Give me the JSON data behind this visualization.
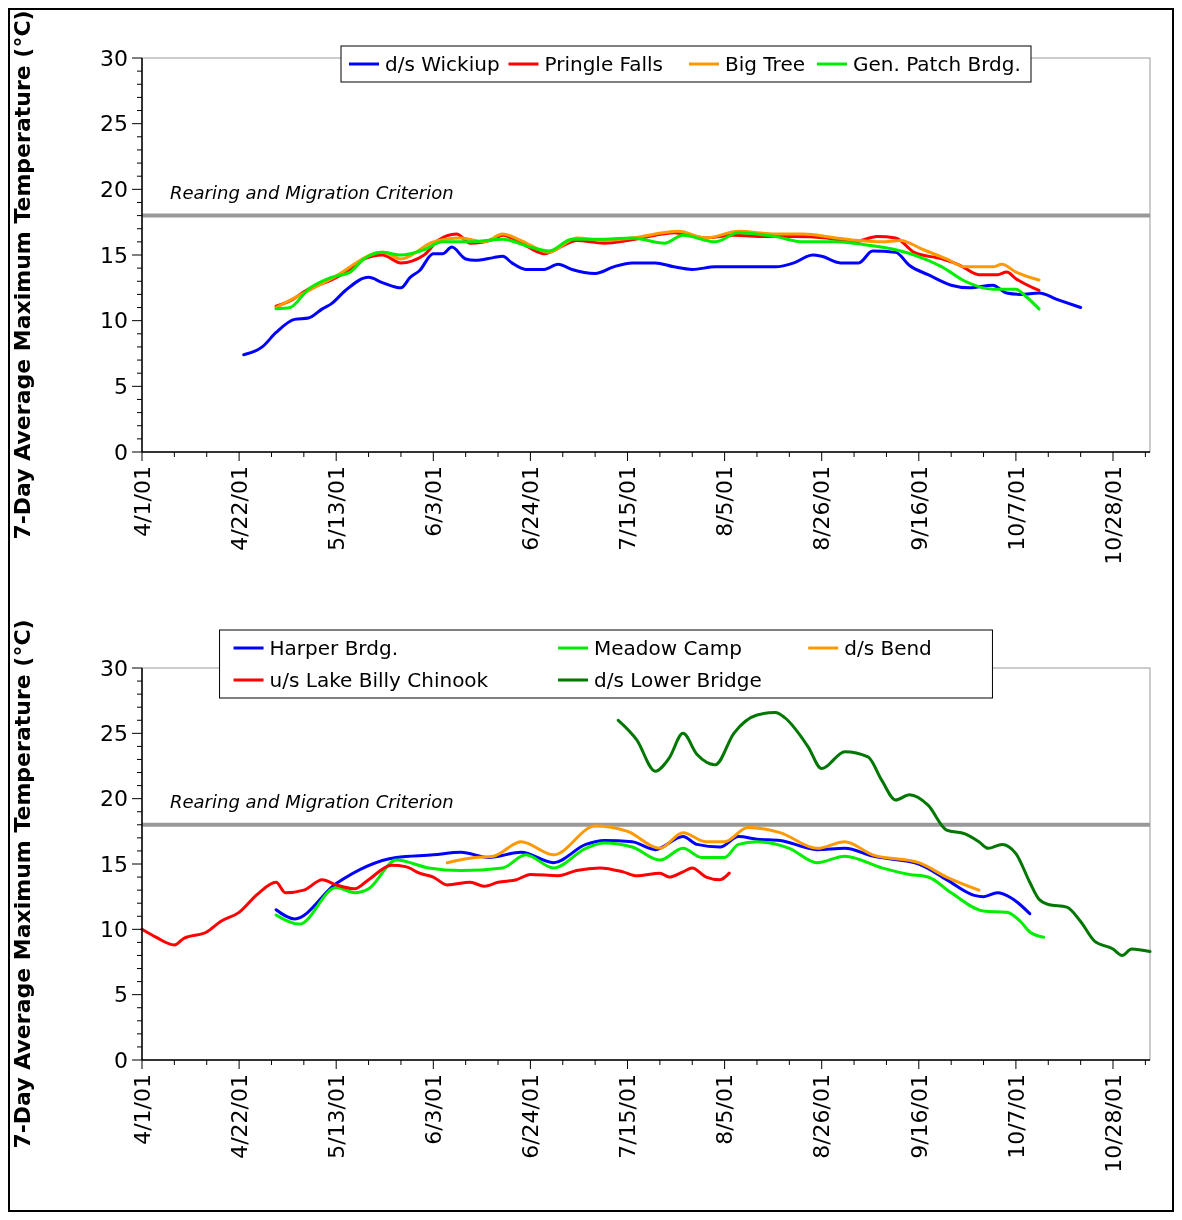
{
  "chart_data": [
    {
      "type": "line",
      "ylabel": "7-Day Average Maximum Temperature (°C)",
      "xlim": [
        "--04-01",
        "--11-05"
      ],
      "ylim": [
        0,
        30
      ],
      "xticks": [
        {
          "value": "--04-01",
          "label": "4/1/01"
        },
        {
          "value": "--04-08",
          "label": null
        },
        {
          "value": "--04-15",
          "label": null
        },
        {
          "value": "--04-22",
          "label": "4/22/01"
        },
        {
          "value": "--04-29",
          "label": null
        },
        {
          "value": "--05-06",
          "label": null
        },
        {
          "value": "--05-13",
          "label": "5/13/01"
        },
        {
          "value": "--05-20",
          "label": null
        },
        {
          "value": "--05-27",
          "label": null
        },
        {
          "value": "--06-03",
          "label": "6/3/01"
        },
        {
          "value": "--06-10",
          "label": null
        },
        {
          "value": "--06-17",
          "label": null
        },
        {
          "value": "--06-24",
          "label": "6/24/01"
        },
        {
          "value": "--07-01",
          "label": null
        },
        {
          "value": "--07-08",
          "label": null
        },
        {
          "value": "--07-15",
          "label": "7/15/01"
        },
        {
          "value": "--07-22",
          "label": null
        },
        {
          "value": "--07-29",
          "label": null
        },
        {
          "value": "--08-05",
          "label": "8/5/01"
        },
        {
          "value": "--08-12",
          "label": null
        },
        {
          "value": "--08-19",
          "label": null
        },
        {
          "value": "--08-26",
          "label": "8/26/01"
        },
        {
          "value": "--09-02",
          "label": null
        },
        {
          "value": "--09-09",
          "label": null
        },
        {
          "value": "--09-16",
          "label": "9/16/01"
        },
        {
          "value": "--09-23",
          "label": null
        },
        {
          "value": "--09-30",
          "label": null
        },
        {
          "value": "--10-07",
          "label": "10/7/01"
        },
        {
          "value": "--10-14",
          "label": null
        },
        {
          "value": "--10-21",
          "label": null
        },
        {
          "value": "--10-28",
          "label": "10/28/01"
        },
        {
          "value": "--11-04",
          "label": null
        }
      ],
      "yticks": [
        0,
        {
          "value": 1,
          "label": null
        },
        {
          "value": 2,
          "label": null
        },
        {
          "value": 3,
          "label": null
        },
        {
          "value": 4,
          "label": null
        },
        5,
        {
          "value": 6,
          "label": null
        },
        {
          "value": 7,
          "label": null
        },
        {
          "value": 8,
          "label": null
        },
        {
          "value": 9,
          "label": null
        },
        10,
        {
          "value": 11,
          "label": null
        },
        {
          "value": 12,
          "label": null
        },
        {
          "value": 13,
          "label": null
        },
        {
          "value": 14,
          "label": null
        },
        15,
        {
          "value": 16,
          "label": null
        },
        {
          "value": 17,
          "label": null
        },
        {
          "value": 18,
          "label": null
        },
        {
          "value": 19,
          "label": null
        },
        20,
        {
          "value": 21,
          "label": null
        },
        {
          "value": 22,
          "label": null
        },
        {
          "value": 23,
          "label": null
        },
        {
          "value": 24,
          "label": null
        },
        25,
        {
          "value": 26,
          "label": null
        },
        {
          "value": 27,
          "label": null
        },
        {
          "value": 28,
          "label": null
        },
        {
          "value": 29,
          "label": null
        },
        30
      ],
      "grid": false,
      "legend": "top",
      "ref_lines": [
        {
          "axis": "y",
          "value": 18,
          "label": "Rearing and Migration Criterion",
          "color": "#999999"
        }
      ],
      "series": [
        {
          "name": "d/s Wickiup",
          "color": "#0000ff",
          "x": [
            "--04-23",
            "--04-27",
            "--04-30",
            "--05-04",
            "--05-07",
            "--05-10",
            "--05-12",
            "--05-15",
            "--05-20",
            "--05-23",
            "--05-27",
            "--05-29",
            "--05-31",
            "--06-03",
            "--06-05",
            "--06-07",
            "--06-10",
            "--06-12",
            "--06-16",
            "--06-18",
            "--06-20",
            "--06-23",
            "--06-27",
            "--06-30",
            "--07-03",
            "--07-08",
            "--07-12",
            "--07-16",
            "--07-21",
            "--07-25",
            "--07-29",
            "--08-03",
            "--08-08",
            "--08-16",
            "--08-20",
            "--08-24",
            "--08-26",
            "--08-30",
            "--09-03",
            "--09-06",
            "--09-11",
            "--09-14",
            "--09-18",
            "--09-23",
            "--09-27",
            "--10-02",
            "--10-05",
            "--10-08",
            "--10-12",
            "--10-16",
            "--10-21"
          ],
          "values": [
            7.4,
            8.0,
            9.1,
            10.1,
            10.2,
            10.9,
            11.3,
            12.3,
            13.3,
            12.9,
            12.5,
            13.3,
            13.8,
            15.1,
            15.1,
            15.6,
            14.7,
            14.6,
            14.8,
            14.9,
            14.4,
            13.9,
            13.9,
            14.3,
            13.9,
            13.6,
            14.1,
            14.4,
            14.4,
            14.1,
            13.9,
            14.1,
            14.1,
            14.1,
            14.4,
            15.0,
            14.9,
            14.4,
            14.4,
            15.3,
            15.2,
            14.2,
            13.5,
            12.7,
            12.5,
            12.7,
            12.1,
            12.0,
            12.1,
            11.6,
            11.0
          ]
        },
        {
          "name": "Pringle Falls",
          "color": "#ff0000",
          "x": [
            "--04-30",
            "--05-03",
            "--05-07",
            "--05-12",
            "--05-16",
            "--05-19",
            "--05-23",
            "--05-27",
            "--06-01",
            "--06-04",
            "--06-08",
            "--06-11",
            "--06-16",
            "--06-18",
            "--06-22",
            "--06-27",
            "--07-01",
            "--07-04",
            "--07-10",
            "--07-15",
            "--07-21",
            "--07-25",
            "--08-01",
            "--08-07",
            "--08-14",
            "--08-20",
            "--08-27",
            "--09-02",
            "--09-07",
            "--09-11",
            "--09-15",
            "--09-21",
            "--09-25",
            "--09-29",
            "--10-03",
            "--10-05",
            "--10-07",
            "--10-12"
          ],
          "values": [
            11.1,
            11.5,
            12.4,
            13.1,
            13.9,
            14.7,
            15.0,
            14.4,
            15.0,
            16.1,
            16.6,
            15.9,
            16.2,
            16.5,
            15.9,
            15.1,
            15.7,
            16.1,
            15.9,
            16.1,
            16.5,
            16.7,
            16.3,
            16.5,
            16.4,
            16.4,
            16.3,
            16.0,
            16.4,
            16.3,
            15.2,
            14.7,
            14.2,
            13.5,
            13.5,
            13.7,
            13.2,
            12.3
          ]
        },
        {
          "name": "Big Tree",
          "color": "#ff9900",
          "x": [
            "--04-30",
            "--05-12",
            "--05-23",
            "--05-27",
            "--06-03",
            "--06-09",
            "--06-14",
            "--06-18",
            "--06-22",
            "--06-28",
            "--07-04",
            "--07-10",
            "--07-16",
            "--07-26",
            "--08-01",
            "--08-08",
            "--08-16",
            "--08-22",
            "--08-29",
            "--09-03",
            "--09-08",
            "--09-12",
            "--09-17",
            "--09-22",
            "--09-26",
            "--10-02",
            "--10-04",
            "--10-07",
            "--10-12"
          ],
          "values": [
            11.0,
            13.2,
            15.2,
            14.7,
            16.0,
            16.3,
            16.0,
            16.6,
            16.1,
            15.2,
            16.3,
            16.1,
            16.3,
            16.8,
            16.3,
            16.8,
            16.6,
            16.6,
            16.3,
            16.1,
            16.0,
            16.1,
            15.4,
            14.7,
            14.1,
            14.1,
            14.3,
            13.7,
            13.1
          ]
        },
        {
          "name": "Gen. Patch Brdg.",
          "color": "#00ee00",
          "x": [
            "--04-30",
            "--05-03",
            "--05-07",
            "--05-12",
            "--05-16",
            "--05-19",
            "--05-23",
            "--05-27",
            "--06-01",
            "--06-05",
            "--06-11",
            "--06-18",
            "--06-24",
            "--06-28",
            "--07-03",
            "--07-10",
            "--07-16",
            "--07-23",
            "--07-27",
            "--08-03",
            "--08-08",
            "--08-16",
            "--08-22",
            "--08-29",
            "--09-04",
            "--09-11",
            "--09-15",
            "--09-21",
            "--09-26",
            "--10-02",
            "--10-07",
            "--10-09",
            "--10-12"
          ],
          "values": [
            10.9,
            11.0,
            12.4,
            13.3,
            13.7,
            14.7,
            15.2,
            15.0,
            15.4,
            16.0,
            16.0,
            16.2,
            15.6,
            15.3,
            16.2,
            16.2,
            16.3,
            15.9,
            16.5,
            16.0,
            16.7,
            16.4,
            16.0,
            16.0,
            15.8,
            15.4,
            15.0,
            14.1,
            13.0,
            12.4,
            12.4,
            11.9,
            10.9
          ]
        }
      ]
    },
    {
      "type": "line",
      "ylabel": "7-Day Average Maximum Temperature (°C)",
      "xlim": [
        "--04-01",
        "--11-05"
      ],
      "ylim": [
        0,
        30
      ],
      "xticks": [
        {
          "value": "--04-01",
          "label": "4/1/01"
        },
        {
          "value": "--04-08",
          "label": null
        },
        {
          "value": "--04-15",
          "label": null
        },
        {
          "value": "--04-22",
          "label": "4/22/01"
        },
        {
          "value": "--04-29",
          "label": null
        },
        {
          "value": "--05-06",
          "label": null
        },
        {
          "value": "--05-13",
          "label": "5/13/01"
        },
        {
          "value": "--05-20",
          "label": null
        },
        {
          "value": "--05-27",
          "label": null
        },
        {
          "value": "--06-03",
          "label": "6/3/01"
        },
        {
          "value": "--06-10",
          "label": null
        },
        {
          "value": "--06-17",
          "label": null
        },
        {
          "value": "--06-24",
          "label": "6/24/01"
        },
        {
          "value": "--07-01",
          "label": null
        },
        {
          "value": "--07-08",
          "label": null
        },
        {
          "value": "--07-15",
          "label": "7/15/01"
        },
        {
          "value": "--07-22",
          "label": null
        },
        {
          "value": "--07-29",
          "label": null
        },
        {
          "value": "--08-05",
          "label": "8/5/01"
        },
        {
          "value": "--08-12",
          "label": null
        },
        {
          "value": "--08-19",
          "label": null
        },
        {
          "value": "--08-26",
          "label": "8/26/01"
        },
        {
          "value": "--09-02",
          "label": null
        },
        {
          "value": "--09-09",
          "label": null
        },
        {
          "value": "--09-16",
          "label": "9/16/01"
        },
        {
          "value": "--09-23",
          "label": null
        },
        {
          "value": "--09-30",
          "label": null
        },
        {
          "value": "--10-07",
          "label": "10/7/01"
        },
        {
          "value": "--10-14",
          "label": null
        },
        {
          "value": "--10-21",
          "label": null
        },
        {
          "value": "--10-28",
          "label": "10/28/01"
        },
        {
          "value": "--11-04",
          "label": null
        }
      ],
      "yticks": [
        0,
        {
          "value": 1,
          "label": null
        },
        {
          "value": 2,
          "label": null
        },
        {
          "value": 3,
          "label": null
        },
        {
          "value": 4,
          "label": null
        },
        5,
        {
          "value": 6,
          "label": null
        },
        {
          "value": 7,
          "label": null
        },
        {
          "value": 8,
          "label": null
        },
        {
          "value": 9,
          "label": null
        },
        10,
        {
          "value": 11,
          "label": null
        },
        {
          "value": 12,
          "label": null
        },
        {
          "value": 13,
          "label": null
        },
        {
          "value": 14,
          "label": null
        },
        15,
        {
          "value": 16,
          "label": null
        },
        {
          "value": 17,
          "label": null
        },
        {
          "value": 18,
          "label": null
        },
        {
          "value": 19,
          "label": null
        },
        20,
        {
          "value": 21,
          "label": null
        },
        {
          "value": 22,
          "label": null
        },
        {
          "value": 23,
          "label": null
        },
        {
          "value": 24,
          "label": null
        },
        25,
        {
          "value": 26,
          "label": null
        },
        {
          "value": 27,
          "label": null
        },
        {
          "value": 28,
          "label": null
        },
        {
          "value": 29,
          "label": null
        },
        30
      ],
      "grid": false,
      "legend": "top",
      "ref_lines": [
        {
          "axis": "y",
          "value": 18,
          "label": "Rearing and Migration Criterion",
          "color": "#999999"
        }
      ],
      "series": [
        {
          "name": "Harper Brdg.",
          "color": "#0000ff",
          "x": [
            "--04-30",
            "--05-04",
            "--05-13",
            "--05-26",
            "--06-03",
            "--06-09",
            "--06-15",
            "--06-22",
            "--06-29",
            "--07-06",
            "--07-10",
            "--07-16",
            "--07-21",
            "--07-27",
            "--07-30",
            "--08-04",
            "--08-08",
            "--08-12",
            "--08-17",
            "--08-25",
            "--08-31",
            "--09-06",
            "--09-16",
            "--09-22",
            "--09-28",
            "--09-30",
            "--10-03",
            "--10-06",
            "--10-10"
          ],
          "values": [
            11.5,
            10.8,
            13.5,
            15.5,
            15.7,
            15.9,
            15.5,
            15.9,
            15.1,
            16.5,
            16.8,
            16.7,
            16.1,
            17.1,
            16.5,
            16.3,
            17.1,
            16.9,
            16.8,
            16.1,
            16.2,
            15.6,
            15.0,
            13.8,
            12.6,
            12.5,
            12.8,
            12.4,
            11.2
          ]
        },
        {
          "name": "Meadow Camp",
          "color": "#00ee00",
          "x": [
            "--04-30",
            "--05-05",
            "--05-13",
            "--05-17",
            "--05-20",
            "--05-26",
            "--06-02",
            "--06-09",
            "--06-18",
            "--06-23",
            "--06-29",
            "--07-06",
            "--07-10",
            "--07-16",
            "--07-22",
            "--07-27",
            "--07-31",
            "--08-05",
            "--08-08",
            "--08-12",
            "--08-19",
            "--08-25",
            "--08-31",
            "--09-08",
            "--09-14",
            "--09-18",
            "--09-23",
            "--09-30",
            "--10-05",
            "--10-08",
            "--10-10",
            "--10-13"
          ],
          "values": [
            11.1,
            10.4,
            13.2,
            12.8,
            13.1,
            15.3,
            14.7,
            14.5,
            14.7,
            15.7,
            14.7,
            16.2,
            16.6,
            16.3,
            15.3,
            16.2,
            15.5,
            15.5,
            16.5,
            16.7,
            16.2,
            15.1,
            15.6,
            14.7,
            14.2,
            14.0,
            12.8,
            11.4,
            11.3,
            10.6,
            9.8,
            9.4
          ]
        },
        {
          "name": "d/s Bend",
          "color": "#ff9900",
          "x": [
            "--06-06",
            "--06-12",
            "--06-16",
            "--06-22",
            "--06-29",
            "--07-08",
            "--07-15",
            "--07-22",
            "--07-27",
            "--08-01",
            "--08-05",
            "--08-10",
            "--08-17",
            "--08-25",
            "--08-31",
            "--09-06",
            "--09-16",
            "--09-22",
            "--09-29"
          ],
          "values": [
            15.1,
            15.5,
            15.6,
            16.7,
            15.7,
            17.9,
            17.5,
            16.2,
            17.4,
            16.7,
            16.7,
            17.8,
            17.4,
            16.2,
            16.7,
            15.7,
            15.1,
            14.0,
            13.0
          ]
        },
        {
          "name": "u/s Lake Billy Chinook",
          "color": "#ff0000",
          "x": [
            "--04-01",
            "--04-04",
            "--04-08",
            "--04-10",
            "--04-15",
            "--04-18",
            "--04-22",
            "--04-26",
            "--04-30",
            "--05-02",
            "--05-06",
            "--05-10",
            "--05-13",
            "--05-17",
            "--05-20",
            "--05-25",
            "--05-28",
            "--05-31",
            "--06-03",
            "--06-06",
            "--06-11",
            "--06-14",
            "--06-17",
            "--06-21",
            "--06-24",
            "--06-30",
            "--07-04",
            "--07-09",
            "--07-14",
            "--07-17",
            "--07-22",
            "--07-24",
            "--07-27",
            "--07-29",
            "--08-01",
            "--08-04",
            "--08-06"
          ],
          "values": [
            10.0,
            9.4,
            8.8,
            9.3,
            9.8,
            10.6,
            11.3,
            12.7,
            13.6,
            12.8,
            13.0,
            13.8,
            13.4,
            13.1,
            13.8,
            14.9,
            14.8,
            14.3,
            14.0,
            13.4,
            13.6,
            13.3,
            13.6,
            13.8,
            14.2,
            14.1,
            14.5,
            14.7,
            14.4,
            14.1,
            14.3,
            14.0,
            14.4,
            14.7,
            14.0,
            13.8,
            14.3
          ]
        },
        {
          "name": "d/s Lower Bridge",
          "color": "#007700",
          "x": [
            "--07-13",
            "--07-17",
            "--07-21",
            "--07-24",
            "--07-27",
            "--07-30",
            "--08-03",
            "--08-07",
            "--08-12",
            "--08-16",
            "--08-18",
            "--08-23",
            "--08-26",
            "--08-31",
            "--09-05",
            "--09-08",
            "--09-11",
            "--09-14",
            "--09-18",
            "--09-22",
            "--09-26",
            "--09-29",
            "--10-01",
            "--10-04",
            "--10-07",
            "--10-10",
            "--10-12",
            "--10-14",
            "--10-18",
            "--10-21",
            "--10-24",
            "--10-28",
            "--10-30",
            "--11-01",
            "--11-05"
          ],
          "values": [
            26.0,
            24.5,
            22.1,
            23.1,
            25.0,
            23.4,
            22.6,
            25.0,
            26.4,
            26.6,
            26.2,
            24.0,
            22.3,
            23.6,
            23.2,
            21.4,
            19.9,
            20.3,
            19.5,
            17.6,
            17.3,
            16.7,
            16.2,
            16.5,
            15.8,
            13.6,
            12.3,
            11.9,
            11.7,
            10.6,
            9.1,
            8.5,
            8.0,
            8.5,
            8.3
          ]
        }
      ]
    }
  ]
}
